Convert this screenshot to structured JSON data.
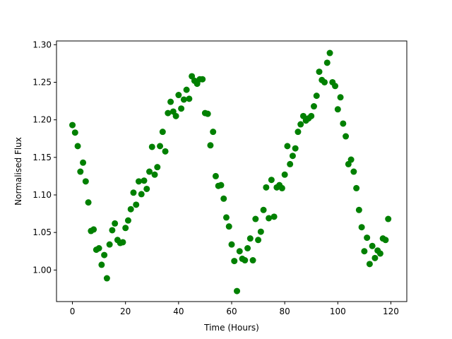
{
  "chart_data": {
    "type": "scatter",
    "title": "",
    "xlabel": "Time (Hours)",
    "ylabel": "Normalised Flux",
    "xlim": [
      -6,
      126
    ],
    "ylim": [
      0.958,
      1.305
    ],
    "xticks": [
      0,
      20,
      40,
      60,
      80,
      100,
      120
    ],
    "yticks": [
      1.0,
      1.05,
      1.1,
      1.15,
      1.2,
      1.25,
      1.3
    ],
    "xtick_labels": [
      "0",
      "20",
      "40",
      "60",
      "80",
      "100",
      "120"
    ],
    "ytick_labels": [
      "1.00",
      "1.05",
      "1.10",
      "1.15",
      "1.20",
      "1.25",
      "1.30"
    ],
    "grid": false,
    "marker_color": "#008000",
    "series": [
      {
        "x": [
          0,
          1,
          2,
          3,
          4,
          5,
          6,
          7,
          8,
          9,
          10,
          11,
          12,
          13,
          14,
          15,
          16,
          17,
          18,
          19,
          20,
          21,
          22,
          23,
          24,
          25,
          26,
          27,
          28,
          29,
          30,
          31,
          32,
          33,
          34,
          35,
          36,
          37,
          38,
          39,
          40,
          41,
          42,
          43,
          44,
          45,
          46,
          47,
          48,
          49,
          50,
          51,
          52,
          53,
          54,
          55,
          56,
          57,
          58,
          59,
          60,
          61,
          62,
          63,
          64,
          65,
          66,
          67,
          68,
          69,
          70,
          71,
          72,
          73,
          74,
          75,
          76,
          77,
          78,
          79,
          80,
          81,
          82,
          83,
          84,
          85,
          86,
          87,
          88,
          89,
          90,
          91,
          92,
          93,
          94,
          95,
          96,
          97,
          98,
          99,
          100,
          101,
          102,
          103,
          104,
          105,
          106,
          107,
          108,
          109,
          110,
          111,
          112,
          113,
          114,
          115,
          116,
          117,
          118,
          119
        ],
        "y": [
          1.193,
          1.183,
          1.165,
          1.131,
          1.143,
          1.118,
          1.09,
          1.052,
          1.054,
          1.027,
          1.029,
          1.007,
          1.02,
          0.989,
          1.034,
          1.053,
          1.062,
          1.04,
          1.036,
          1.037,
          1.056,
          1.066,
          1.081,
          1.103,
          1.087,
          1.118,
          1.101,
          1.119,
          1.108,
          1.131,
          1.164,
          1.127,
          1.137,
          1.165,
          1.184,
          1.158,
          1.209,
          1.224,
          1.211,
          1.205,
          1.233,
          1.215,
          1.227,
          1.24,
          1.228,
          1.258,
          1.252,
          1.248,
          1.254,
          1.254,
          1.209,
          1.208,
          1.166,
          1.184,
          1.125,
          1.112,
          1.113,
          1.095,
          1.07,
          1.058,
          1.034,
          1.012,
          0.972,
          1.025,
          1.015,
          1.013,
          1.029,
          1.042,
          1.013,
          1.068,
          1.04,
          1.051,
          1.08,
          1.11,
          1.069,
          1.12,
          1.071,
          1.11,
          1.113,
          1.109,
          1.127,
          1.165,
          1.141,
          1.152,
          1.162,
          1.184,
          1.194,
          1.205,
          1.199,
          1.202,
          1.205,
          1.218,
          1.232,
          1.264,
          1.253,
          1.25,
          1.276,
          1.289,
          1.25,
          1.245,
          1.214,
          1.23,
          1.195,
          1.178,
          1.141,
          1.147,
          1.131,
          1.109,
          1.08,
          1.057,
          1.025,
          1.043,
          1.008,
          1.032,
          1.016,
          1.026,
          1.022,
          1.042,
          1.04,
          1.068
        ]
      }
    ]
  }
}
